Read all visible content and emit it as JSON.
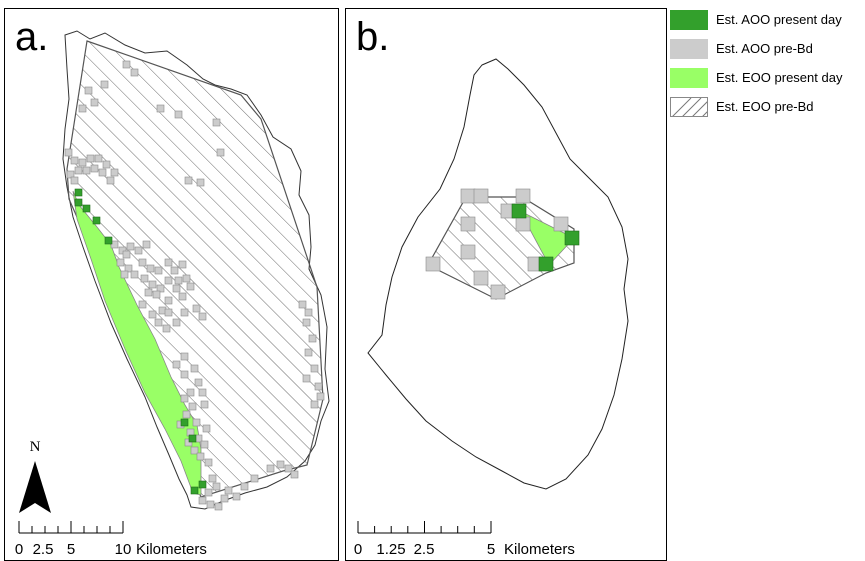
{
  "panels": {
    "a": {
      "label": "a.",
      "north_label": "N",
      "scale_ticks": [
        "0",
        "2.5",
        "5",
        "10"
      ],
      "scale_unit": "Kilometers"
    },
    "b": {
      "label": "b.",
      "scale_ticks": [
        "0",
        "1.25",
        "2.5",
        "5"
      ],
      "scale_unit": "Kilometers"
    }
  },
  "legend": {
    "items": [
      {
        "label": "Est. AOO present day",
        "color": "#33a02c",
        "style": "solid"
      },
      {
        "label": "Est. AOO pre-Bd",
        "color": "#cccccc",
        "style": "solid"
      },
      {
        "label": "Est. EOO present day",
        "color": "#99ff66",
        "style": "solid"
      },
      {
        "label": "Est. EOO pre-Bd",
        "color": "#ffffff",
        "style": "hatched"
      }
    ]
  }
}
